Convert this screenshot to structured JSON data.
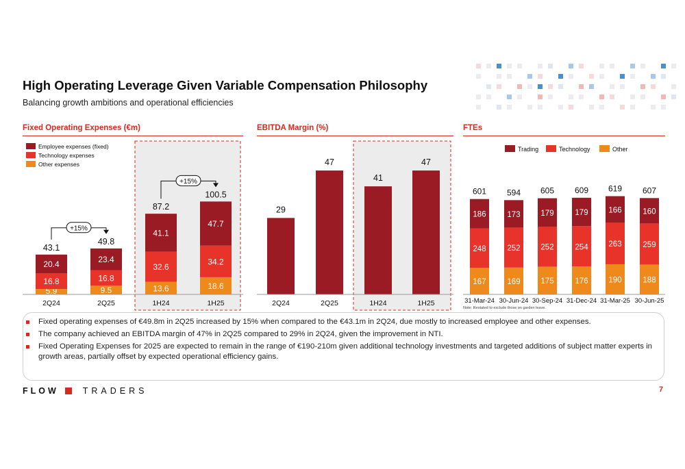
{
  "title": "High Operating Leverage Given Variable Compensation Philosophy",
  "subtitle": "Balancing growth ambitions and operational efficiencies",
  "colors": {
    "employee": "#9b1b25",
    "technology": "#e8332a",
    "other": "#ee8a1b",
    "accent": "#d42a20",
    "highlight_bg": "#ececec"
  },
  "chart_data": [
    {
      "type": "bar",
      "stacked": true,
      "title": "Fixed Operating Expenses (€m)",
      "categories": [
        "2Q24",
        "2Q25",
        "1H24",
        "1H25"
      ],
      "series": [
        {
          "name": "Other expenses",
          "values": [
            5.9,
            9.5,
            13.6,
            18.6
          ]
        },
        {
          "name": "Technology expenses",
          "values": [
            16.8,
            16.8,
            32.6,
            34.2
          ]
        },
        {
          "name": "Employee expenses (fixed)",
          "values": [
            20.4,
            23.4,
            41.1,
            47.7
          ]
        }
      ],
      "totals": [
        43.1,
        49.8,
        87.2,
        100.5
      ],
      "growth_labels": [
        "+15%",
        "+15%"
      ],
      "legend": "top-left",
      "highlight_categories": [
        "1H24",
        "1H25"
      ]
    },
    {
      "type": "bar",
      "title": "EBITDA Margin (%)",
      "categories": [
        "2Q24",
        "2Q25",
        "1H24",
        "1H25"
      ],
      "values": [
        29,
        47,
        41,
        47
      ],
      "highlight_categories": [
        "1H24",
        "1H25"
      ]
    },
    {
      "type": "bar",
      "stacked": true,
      "title": "FTEs",
      "categories": [
        "31-Mar-24",
        "30-Jun-24",
        "30-Sep-24",
        "31-Dec-24",
        "31-Mar-25",
        "30-Jun-25"
      ],
      "series": [
        {
          "name": "Other",
          "values": [
            167,
            169,
            175,
            176,
            190,
            188
          ]
        },
        {
          "name": "Technology",
          "values": [
            248,
            252,
            252,
            254,
            263,
            259
          ]
        },
        {
          "name": "Trading",
          "values": [
            186,
            173,
            179,
            179,
            166,
            160
          ]
        }
      ],
      "totals": [
        601,
        594,
        605,
        609,
        619,
        607
      ],
      "legend": "top",
      "note": "Note: Restated to exclude those on garden leave."
    }
  ],
  "bullets": [
    "Fixed operating expenses of €49.8m in 2Q25 increased by 15% when compared to the €43.1m in 2Q24, due mostly to increased employee and other expenses.",
    "The company achieved an EBITDA margin of 47% in 2Q25 compared to 29% in 2Q24, given the improvement in NTI.",
    "Fixed Operating Expenses for 2025 are expected to remain in the range of €190-210m given additional technology investments and targeted additions of subject matter experts in growth areas, partially offset by expected operational efficiency gains."
  ],
  "logo": {
    "word1": "FLOW",
    "word2": "TRADERS"
  },
  "page_number": "7"
}
